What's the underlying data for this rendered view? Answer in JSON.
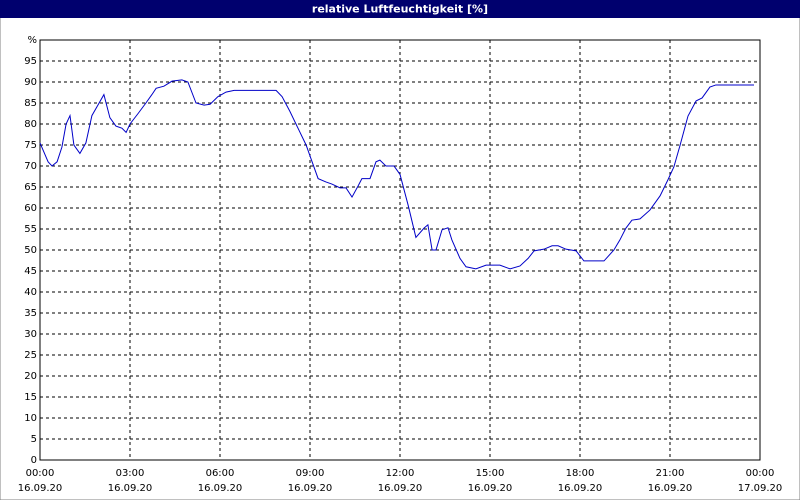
{
  "chart_data": {
    "type": "line",
    "title": "relative Luftfeuchtigkeit [%]",
    "xlim": [
      0,
      24
    ],
    "ylim": [
      0,
      100
    ],
    "grid": true,
    "xticks": [
      {
        "value": 0,
        "label": [
          "00:00",
          "16.09.20"
        ]
      },
      {
        "value": 3,
        "label": [
          "03:00",
          "16.09.20"
        ]
      },
      {
        "value": 6,
        "label": [
          "06:00",
          "16.09.20"
        ]
      },
      {
        "value": 9,
        "label": [
          "09:00",
          "16.09.20"
        ]
      },
      {
        "value": 12,
        "label": [
          "12:00",
          "16.09.20"
        ]
      },
      {
        "value": 15,
        "label": [
          "15:00",
          "16.09.20"
        ]
      },
      {
        "value": 18,
        "label": [
          "18:00",
          "16.09.20"
        ]
      },
      {
        "value": 21,
        "label": [
          "21:00",
          "16.09.20"
        ]
      },
      {
        "value": 24,
        "label": [
          "00:00",
          "17.09.20"
        ]
      }
    ],
    "yticks": [
      0,
      5,
      10,
      15,
      20,
      25,
      30,
      35,
      40,
      45,
      50,
      55,
      60,
      65,
      70,
      75,
      80,
      85,
      90,
      95,
      {
        "value": 100,
        "label": "%"
      }
    ],
    "series": [
      {
        "color": "#0000c8",
        "x": [
          0,
          0.27,
          0.4,
          0.57,
          0.73,
          0.87,
          1,
          1.13,
          1.33,
          1.53,
          1.73,
          1.93,
          2.13,
          2.33,
          2.53,
          2.73,
          2.87,
          3,
          3.27,
          3.53,
          3.73,
          3.87,
          4.13,
          4.4,
          4.73,
          4.93,
          5.2,
          5.47,
          5.67,
          5.93,
          6.2,
          6.47,
          7.87,
          8.07,
          8.33,
          8.6,
          8.87,
          9.07,
          9.27,
          9.53,
          9.73,
          10,
          10.2,
          10.4,
          10.6,
          10.73,
          11,
          11.2,
          11.33,
          11.53,
          11.8,
          12,
          12.27,
          12.53,
          12.8,
          12.93,
          13.07,
          13.2,
          13.4,
          13.6,
          13.73,
          14,
          14.2,
          14.53,
          14.87,
          15.33,
          15.67,
          16,
          16.27,
          16.47,
          16.8,
          17.07,
          17.27,
          17.53,
          17.87,
          18.13,
          18.8,
          19.13,
          19.33,
          19.53,
          19.73,
          20,
          20.33,
          20.67,
          20.93,
          21.13,
          21.33,
          21.6,
          21.87,
          22.07,
          22.33,
          22.53,
          23.8
        ],
        "values": [
          75.5,
          71,
          70,
          71,
          74.5,
          80,
          82,
          75,
          73,
          75.5,
          82,
          84.5,
          87,
          81.5,
          79.5,
          79,
          78,
          80,
          82.5,
          85,
          87,
          88.5,
          89,
          90.2,
          90.5,
          90,
          85,
          84.5,
          84.7,
          86.5,
          87.6,
          88,
          88,
          86.5,
          83,
          79,
          75,
          71,
          67,
          66.2,
          65.7,
          64.8,
          64.8,
          62.6,
          65.2,
          67,
          67,
          71,
          71.4,
          70,
          70,
          68,
          60.7,
          53,
          55.2,
          56,
          50,
          50,
          54.8,
          55.3,
          52.4,
          48,
          46,
          45.5,
          46.4,
          46.4,
          45.5,
          46.2,
          48,
          49.8,
          50.2,
          51,
          51,
          50.2,
          49.8,
          47.4,
          47.4,
          50,
          52.4,
          55.2,
          57.1,
          57.4,
          59.5,
          62.9,
          66.7,
          69.8,
          74.8,
          81.9,
          85.5,
          86.2,
          88.8,
          89.3,
          89.3
        ]
      }
    ]
  }
}
